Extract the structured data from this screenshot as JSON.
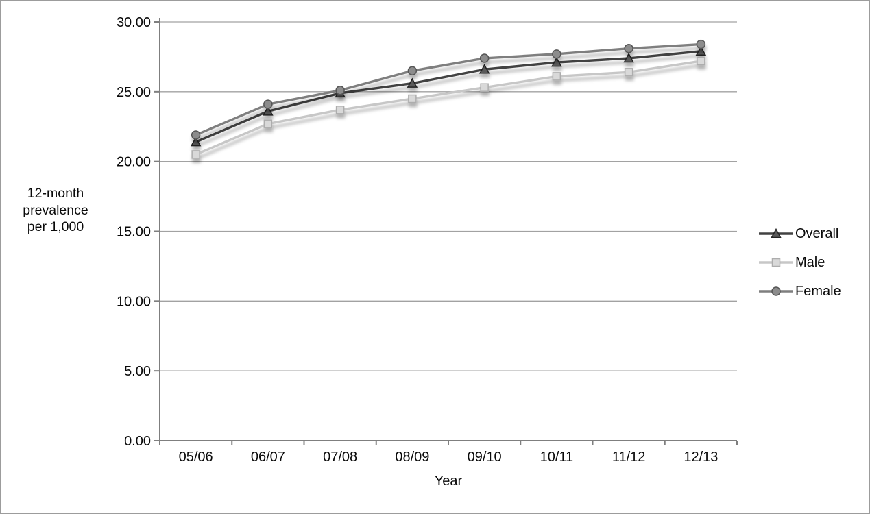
{
  "figure": {
    "background": "#ffffff",
    "border_color": "#9c9c9c"
  },
  "chart_data": {
    "type": "line",
    "title": "",
    "xlabel": "Year",
    "ylabel": "12-month prevalence per 1,000",
    "ylabel_lines": [
      "12-month",
      "prevalence",
      "per 1,000"
    ],
    "ylim": [
      0,
      30
    ],
    "grid": true,
    "legend_position": "right",
    "categories": [
      "05/06",
      "06/07",
      "07/08",
      "08/09",
      "09/10",
      "10/11",
      "11/12",
      "12/13"
    ],
    "yticks": [
      {
        "value": 30,
        "label": "30.00"
      },
      {
        "value": 25,
        "label": "25.00"
      },
      {
        "value": 20,
        "label": "20.00"
      },
      {
        "value": 15,
        "label": "15.00"
      },
      {
        "value": 10,
        "label": "10.00"
      },
      {
        "value": 5,
        "label": "5.00"
      },
      {
        "value": 0,
        "label": "0.00"
      }
    ],
    "series": [
      {
        "name": "Overall",
        "marker": "triangle",
        "line_color": "#424242",
        "marker_fill": "#5a5a5a",
        "marker_edge": "#242424",
        "values": [
          21.4,
          23.6,
          24.9,
          25.6,
          26.6,
          27.1,
          27.4,
          27.9
        ]
      },
      {
        "name": "Male",
        "marker": "square",
        "line_color": "#c7c7c7",
        "marker_fill": "#d9d9d9",
        "marker_edge": "#adadad",
        "values": [
          20.5,
          22.7,
          23.7,
          24.5,
          25.3,
          26.1,
          26.4,
          27.2
        ]
      },
      {
        "name": "Female",
        "marker": "circle",
        "line_color": "#7f7f7f",
        "marker_fill": "#8c8c8c",
        "marker_edge": "#565656",
        "values": [
          21.9,
          24.1,
          25.1,
          26.5,
          27.4,
          27.7,
          28.1,
          28.4
        ]
      }
    ],
    "colors": {
      "gridline": "#a2a2a2",
      "axis": "#7f7f7f",
      "tick_text": "#0a0a0a"
    }
  }
}
